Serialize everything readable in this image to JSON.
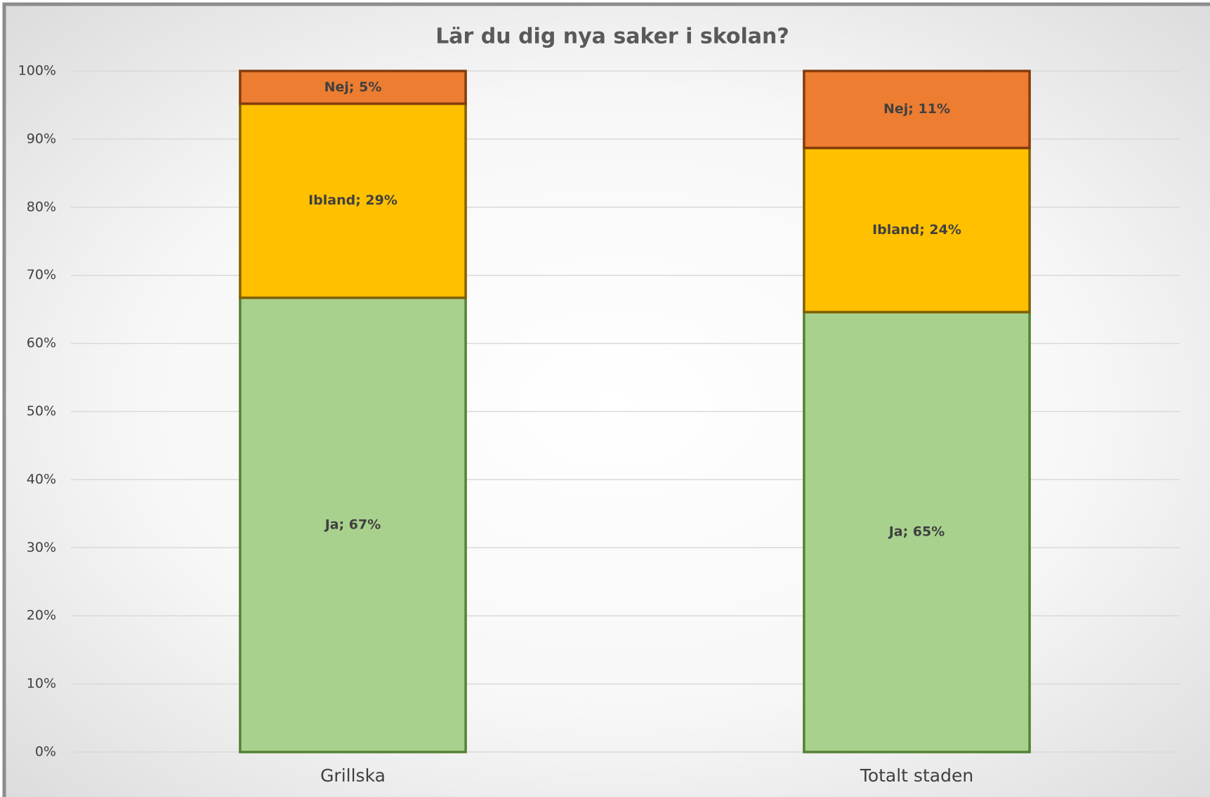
{
  "chart_data": {
    "type": "stacked_bar",
    "title": "Lär du dig nya saker i skolan?",
    "categories": [
      "Grillska",
      "Totalt staden"
    ],
    "series": [
      {
        "color": "#a9d18e",
        "edge_color": "#548235",
        "values": [
          66.7,
          64.6
        ],
        "value_labels": [
          "Ja; 67%",
          "Ja; 65%"
        ]
      },
      {
        "color": "#ffc000",
        "edge_color": "#806000",
        "values": [
          28.5,
          24.1
        ],
        "value_labels": [
          "Ibland; 29%",
          "Ibland; 24%"
        ]
      },
      {
        "color": "#ed7d31",
        "edge_color": "#843c0c",
        "values": [
          4.8,
          11.3
        ],
        "value_labels": [
          "Nej; 5%",
          "Nej; 11%"
        ]
      }
    ],
    "ylim": [
      0,
      100
    ],
    "yticks": [
      {
        "value": 0,
        "label": "0%"
      },
      {
        "value": 10,
        "label": "10%"
      },
      {
        "value": 20,
        "label": "20%"
      },
      {
        "value": 30,
        "label": "30%"
      },
      {
        "value": 40,
        "label": "40%"
      },
      {
        "value": 50,
        "label": "50%"
      },
      {
        "value": 60,
        "label": "60%"
      },
      {
        "value": 70,
        "label": "70%"
      },
      {
        "value": 80,
        "label": "80%"
      },
      {
        "value": 90,
        "label": "90%"
      },
      {
        "value": 100,
        "label": "100%"
      }
    ],
    "grid": true
  }
}
